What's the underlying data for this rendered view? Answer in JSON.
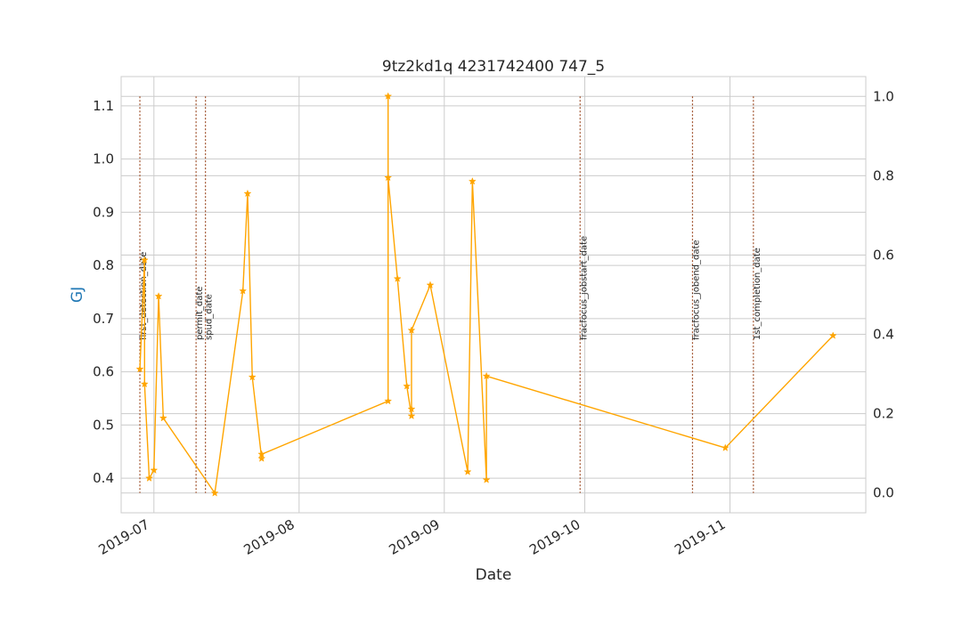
{
  "colors": {
    "series": "#FFA500",
    "event_line": "#A0522D",
    "grid": "#cccccc",
    "ylabel": "#1f77b4",
    "text": "#262626"
  },
  "chart_data": {
    "type": "line",
    "title": "9tz2kd1q 4231742400 747_5",
    "xlabel": "Date",
    "ylabel": "GJ",
    "grid": true,
    "marker": "star",
    "xlim": [
      "2019-06-24",
      "2019-11-30"
    ],
    "ylim": [
      0.335,
      1.155
    ],
    "y2lim": [
      -0.05,
      1.05
    ],
    "x_ticks": [
      "2019-07-01",
      "2019-08-01",
      "2019-09-01",
      "2019-10-01",
      "2019-11-01"
    ],
    "x_tick_labels": [
      "2019-07",
      "2019-08",
      "2019-09",
      "2019-10",
      "2019-11"
    ],
    "y_ticks": [
      0.4,
      0.5,
      0.6,
      0.7,
      0.8,
      0.9,
      1.0,
      1.1
    ],
    "y_tick_labels": [
      "0.4",
      "0.5",
      "0.6",
      "0.7",
      "0.8",
      "0.9",
      "1.0",
      "1.1"
    ],
    "y2_ticks": [
      0.0,
      0.2,
      0.4,
      0.6,
      0.8,
      1.0
    ],
    "y2_tick_labels": [
      "0.0",
      "0.2",
      "0.4",
      "0.6",
      "0.8",
      "1.0"
    ],
    "points": [
      {
        "date": "2019-06-28",
        "value": 0.605
      },
      {
        "date": "2019-06-29",
        "value": 0.81
      },
      {
        "date": "2019-06-29",
        "value": 0.577
      },
      {
        "date": "2019-06-30",
        "value": 0.4
      },
      {
        "date": "2019-07-01",
        "value": 0.415
      },
      {
        "date": "2019-07-02",
        "value": 0.742
      },
      {
        "date": "2019-07-03",
        "value": 0.513
      },
      {
        "date": "2019-07-14",
        "value": 0.372
      },
      {
        "date": "2019-07-20",
        "value": 0.752
      },
      {
        "date": "2019-07-21",
        "value": 0.935
      },
      {
        "date": "2019-07-22",
        "value": 0.59
      },
      {
        "date": "2019-07-24",
        "value": 0.437
      },
      {
        "date": "2019-07-24",
        "value": 0.445
      },
      {
        "date": "2019-08-20",
        "value": 0.545
      },
      {
        "date": "2019-08-20",
        "value": 1.118
      },
      {
        "date": "2019-08-20",
        "value": 0.965
      },
      {
        "date": "2019-08-22",
        "value": 0.775
      },
      {
        "date": "2019-08-24",
        "value": 0.573
      },
      {
        "date": "2019-08-25",
        "value": 0.517
      },
      {
        "date": "2019-08-25",
        "value": 0.53
      },
      {
        "date": "2019-08-25",
        "value": 0.678
      },
      {
        "date": "2019-08-29",
        "value": 0.763
      },
      {
        "date": "2019-09-06",
        "value": 0.412
      },
      {
        "date": "2019-09-07",
        "value": 0.958
      },
      {
        "date": "2019-09-10",
        "value": 0.397
      },
      {
        "date": "2019-09-10",
        "value": 0.592
      },
      {
        "date": "2019-10-31",
        "value": 0.457
      },
      {
        "date": "2019-11-23",
        "value": 0.668
      }
    ],
    "events": [
      {
        "label": "first_detection_date",
        "date": "2019-06-28"
      },
      {
        "label": "permit_date",
        "date": "2019-07-10"
      },
      {
        "label": "spud_date",
        "date": "2019-07-12"
      },
      {
        "label": "fracfocus_jobstart_date",
        "date": "2019-09-30"
      },
      {
        "label": "fracfocus_jobend_date",
        "date": "2019-10-24"
      },
      {
        "label": "1st_completion_date",
        "date": "2019-11-06"
      }
    ]
  }
}
